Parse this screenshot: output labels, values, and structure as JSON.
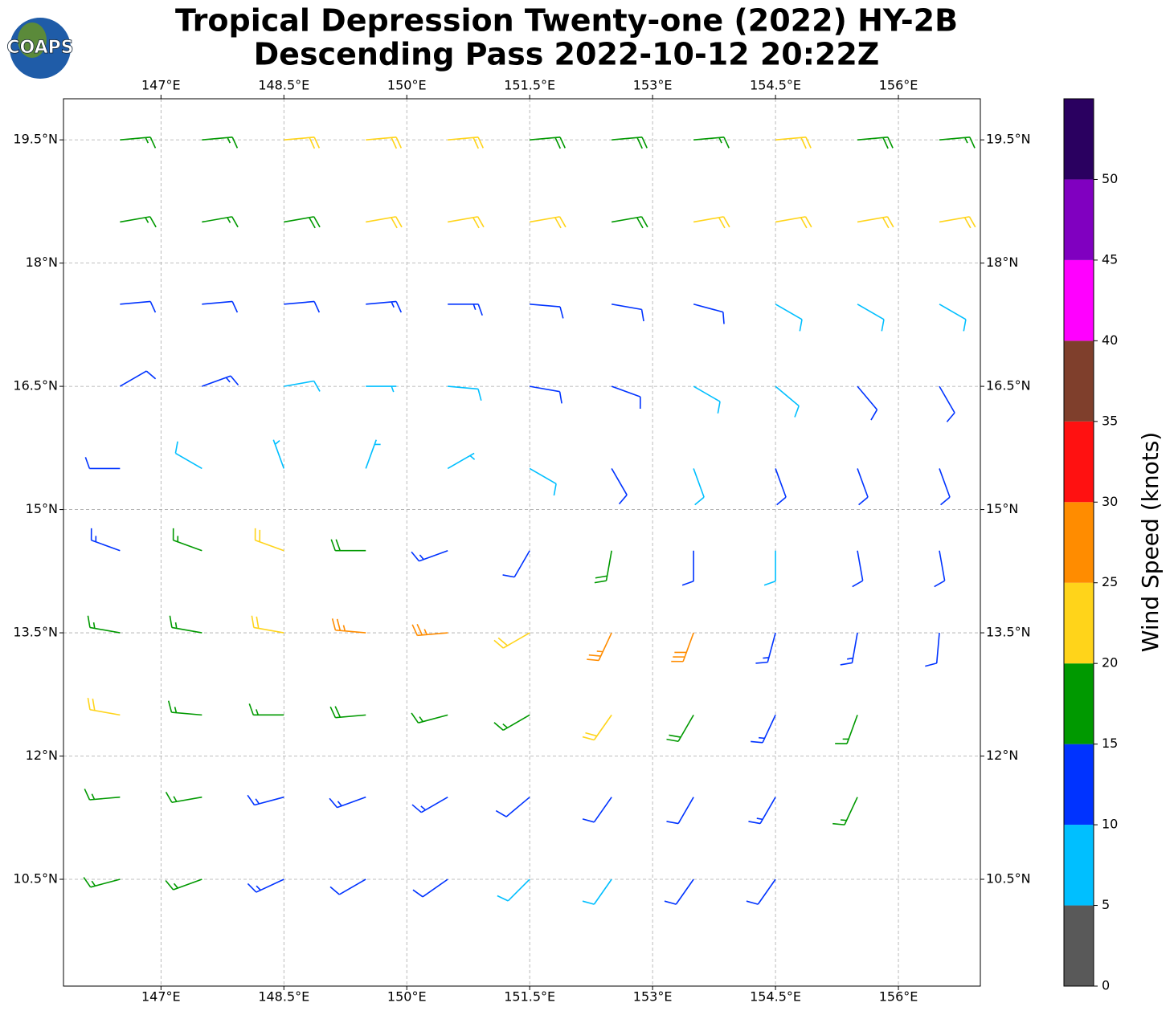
{
  "logo": "COAPS",
  "chart_data": {
    "type": "barbs",
    "title": "Tropical Depression Twenty-one (2022) HY-2B",
    "subtitle": "Descending Pass 2022-10-12 20:22Z",
    "xlim": [
      145.81,
      157.0
    ],
    "ylim": [
      9.2,
      20.0
    ],
    "xticks": [
      {
        "value": 147,
        "label": "147°E"
      },
      {
        "value": 148.5,
        "label": "148.5°E"
      },
      {
        "value": 150,
        "label": "150°E"
      },
      {
        "value": 151.5,
        "label": "151.5°E"
      },
      {
        "value": 153,
        "label": "153°E"
      },
      {
        "value": 154.5,
        "label": "154.5°E"
      },
      {
        "value": 156,
        "label": "156°E"
      }
    ],
    "yticks": [
      {
        "value": 10.5,
        "label": "10.5°N"
      },
      {
        "value": 12,
        "label": "12°N"
      },
      {
        "value": 13.5,
        "label": "13.5°N"
      },
      {
        "value": 15,
        "label": "15°N"
      },
      {
        "value": 16.5,
        "label": "16.5°N"
      },
      {
        "value": 18,
        "label": "18°N"
      },
      {
        "value": 19.5,
        "label": "19.5°N"
      }
    ],
    "grid": true,
    "lons": [
      146.5,
      147.5,
      148.5,
      149.5,
      150.5,
      151.5,
      152.5,
      153.5,
      154.5,
      155.5,
      156.5
    ],
    "lats": [
      19.5,
      18.5,
      17.5,
      16.5,
      15.5,
      14.5,
      13.5,
      12.5,
      11.5,
      10.5
    ],
    "speed": [
      [
        17,
        17,
        20,
        22,
        20,
        18,
        18,
        17,
        20,
        18,
        17
      ],
      [
        17,
        17,
        18,
        22,
        22,
        20,
        18,
        20,
        22,
        22,
        22
      ],
      [
        12,
        12,
        12,
        14,
        14,
        12,
        12,
        10,
        8,
        8,
        8
      ],
      [
        12,
        14,
        8,
        7,
        8,
        10,
        10,
        8,
        8,
        10,
        12
      ],
      [
        10,
        8,
        7,
        7,
        6,
        8,
        10,
        8,
        10,
        12,
        12
      ],
      [
        14,
        15,
        22,
        18,
        14,
        12,
        18,
        12,
        8,
        12,
        12
      ],
      [
        16,
        16,
        20,
        26,
        26,
        20,
        26,
        28,
        14,
        14,
        12
      ],
      [
        20,
        17,
        16,
        18,
        16,
        16,
        22,
        18,
        14,
        17,
        null
      ],
      [
        17,
        16,
        14,
        13,
        13,
        12,
        10,
        12,
        13,
        16,
        null
      ],
      [
        17,
        16,
        14,
        12,
        12,
        9,
        8,
        10,
        12,
        null,
        null
      ]
    ],
    "direction": [
      [
        85,
        85,
        85,
        85,
        85,
        85,
        85,
        85,
        85,
        85,
        85
      ],
      [
        80,
        80,
        80,
        80,
        80,
        80,
        80,
        80,
        80,
        80,
        80
      ],
      [
        85,
        85,
        85,
        85,
        90,
        95,
        100,
        105,
        120,
        120,
        120
      ],
      [
        60,
        70,
        80,
        90,
        95,
        100,
        110,
        120,
        130,
        140,
        150
      ],
      [
        270,
        300,
        340,
        20,
        60,
        120,
        150,
        160,
        160,
        160,
        160
      ],
      [
        290,
        290,
        290,
        270,
        250,
        210,
        190,
        180,
        180,
        170,
        170
      ],
      [
        280,
        280,
        280,
        275,
        265,
        240,
        205,
        200,
        195,
        190,
        185
      ],
      [
        280,
        275,
        270,
        265,
        255,
        240,
        215,
        210,
        205,
        200,
        null
      ],
      [
        265,
        260,
        255,
        250,
        240,
        230,
        215,
        210,
        210,
        205,
        null
      ],
      [
        255,
        250,
        245,
        240,
        235,
        225,
        215,
        215,
        215,
        null,
        null
      ]
    ],
    "colorbar": {
      "label": "Wind Speed (knots)",
      "bounds": [
        0,
        5,
        10,
        15,
        20,
        25,
        30,
        35,
        40,
        45,
        50,
        55
      ],
      "colors": [
        "#595959",
        "#00bfff",
        "#0033ff",
        "#009900",
        "#ffd41a",
        "#ff8c00",
        "#ff1111",
        "#7f3f2c",
        "#ff00ff",
        "#8000c0",
        "#2a0060"
      ],
      "ticks": [
        0,
        5,
        10,
        15,
        20,
        25,
        30,
        35,
        40,
        45,
        50
      ]
    }
  }
}
